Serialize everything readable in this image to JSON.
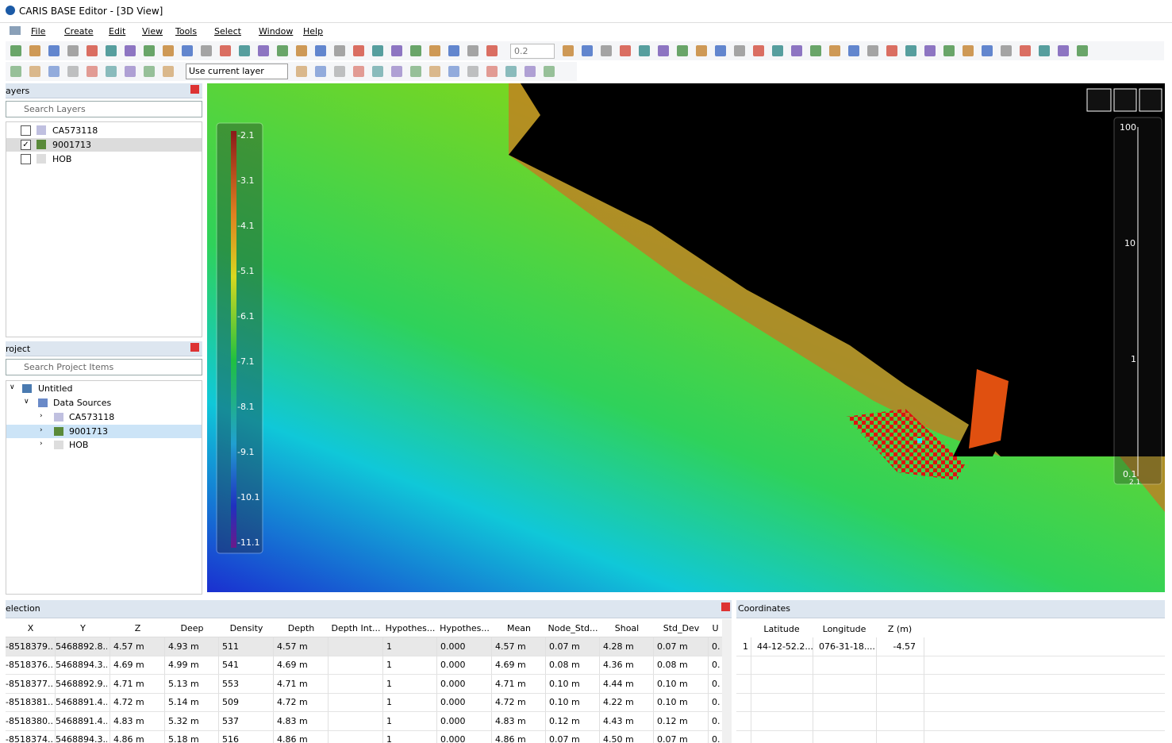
{
  "window": {
    "title": "CARIS BASE Editor - [3D View]"
  },
  "menu": [
    "File",
    "Create",
    "Edit",
    "View",
    "Tools",
    "Select",
    "Window",
    "Help"
  ],
  "toolbar": {
    "zoom_value": "0.2",
    "layer_select": "Use current layer"
  },
  "layers_panel": {
    "title": "ayers",
    "search": "Search Layers",
    "items": [
      {
        "label": "CA573118",
        "checked": false
      },
      {
        "label": "9001713",
        "checked": true
      },
      {
        "label": "HOB",
        "checked": false
      }
    ]
  },
  "project_panel": {
    "title": "roject",
    "search": "Search Project Items",
    "root": "Untitled",
    "group": "Data Sources",
    "children": [
      "CA573118",
      "9001713",
      "HOB"
    ]
  },
  "view3d": {
    "colorbar_labels": [
      "-2.1",
      "-3.1",
      "-4.1",
      "-5.1",
      "-6.1",
      "-7.1",
      "-8.1",
      "-9.1",
      "-10.1",
      "-11.1"
    ],
    "scale_labels": [
      "100",
      "10",
      "1",
      "0.1",
      "2.1"
    ]
  },
  "selection_panel": {
    "title": "election",
    "columns": [
      "X",
      "Y",
      "Z",
      "Deep",
      "Density",
      "Depth",
      "Depth Int...",
      "Hypothes...",
      "Hypothes...",
      "Mean",
      "Node_Std...",
      "Shoal",
      "Std_Dev",
      "U"
    ],
    "rows": [
      [
        "-8518379....",
        "5468892.8...",
        "4.57 m",
        "4.93 m",
        "511",
        "4.57 m",
        null,
        "1",
        "0.000",
        "4.57 m",
        "0.07 m",
        "4.28 m",
        "0.07 m",
        "0."
      ],
      [
        "-8518376....",
        "5468894.3...",
        "4.69 m",
        "4.99 m",
        "541",
        "4.69 m",
        null,
        "1",
        "0.000",
        "4.69 m",
        "0.08 m",
        "4.36 m",
        "0.08 m",
        "0."
      ],
      [
        "-8518377....",
        "5468892.9...",
        "4.71 m",
        "5.13 m",
        "553",
        "4.71 m",
        null,
        "1",
        "0.000",
        "4.71 m",
        "0.10 m",
        "4.44 m",
        "0.10 m",
        "0."
      ],
      [
        "-8518381....",
        "5468891.4...",
        "4.72 m",
        "5.14 m",
        "509",
        "4.72 m",
        null,
        "1",
        "0.000",
        "4.72 m",
        "0.10 m",
        "4.22 m",
        "0.10 m",
        "0."
      ],
      [
        "-8518380....",
        "5468891.4...",
        "4.83 m",
        "5.32 m",
        "537",
        "4.83 m",
        null,
        "1",
        "0.000",
        "4.83 m",
        "0.12 m",
        "4.43 m",
        "0.12 m",
        "0."
      ],
      [
        "-8518374....",
        "5468894.3...",
        "4.86 m",
        "5.18 m",
        "516",
        "4.86 m",
        null,
        "1",
        "0.000",
        "4.86 m",
        "0.07 m",
        "4.50 m",
        "0.07 m",
        "0."
      ]
    ]
  },
  "coordinates_panel": {
    "title": "Coordinates",
    "columns": [
      "Latitude",
      "Longitude",
      "Z (m)"
    ],
    "rows": [
      [
        "1",
        "44-12-52.2...",
        "076-31-18....",
        "-4.57"
      ]
    ]
  }
}
